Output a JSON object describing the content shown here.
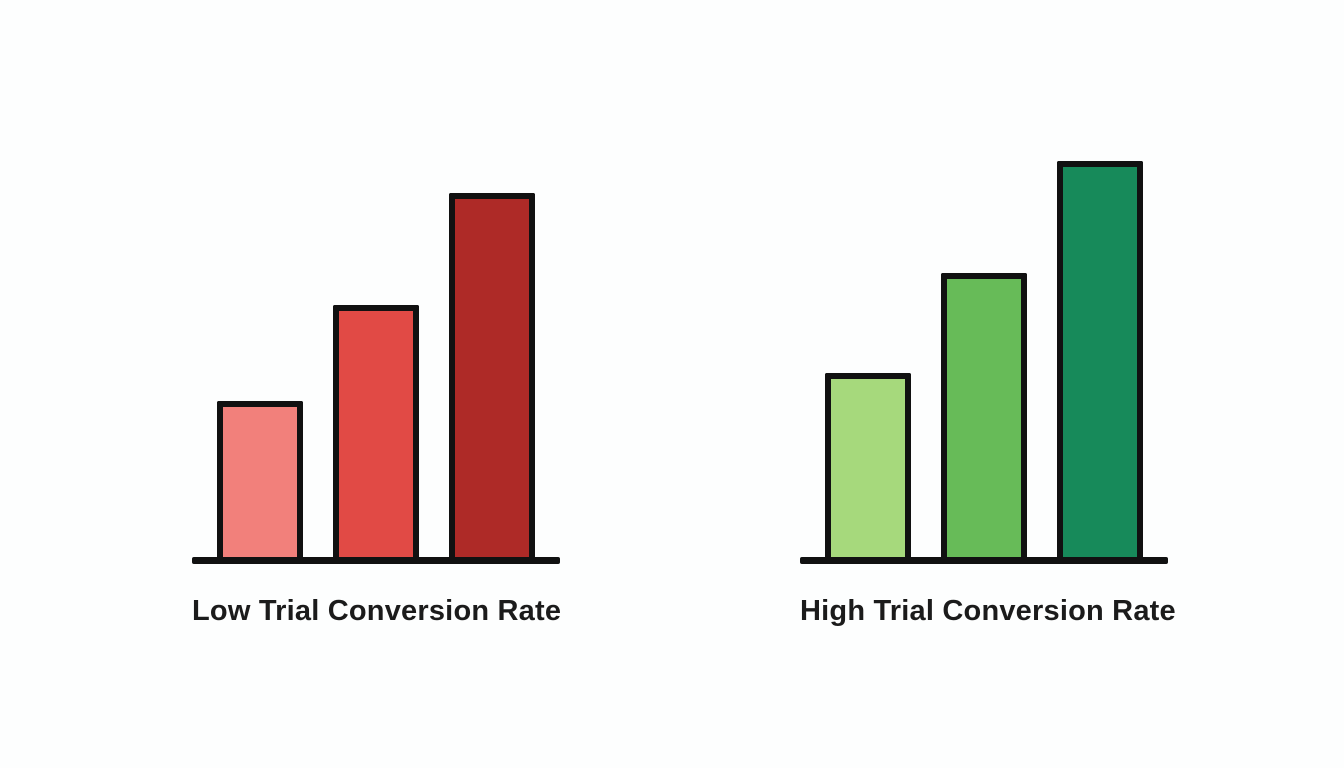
{
  "page": {
    "background_color": "#fdfefe",
    "outline_color": "#111111",
    "text_color": "#1b1b1b"
  },
  "chart_data": [
    {
      "type": "bar",
      "title": "Low Trial Conversion Rate",
      "values": [
        39,
        63,
        91
      ],
      "bar_colors": [
        "#f2807b",
        "#e14a45",
        "#ae2a27"
      ],
      "ylim": [
        0,
        100
      ],
      "xlabel": "",
      "ylabel": "",
      "grid": false,
      "legend": "none"
    },
    {
      "type": "bar",
      "title": "High Trial Conversion Rate",
      "values": [
        46,
        71,
        99
      ],
      "bar_colors": [
        "#a6d97c",
        "#67bb58",
        "#178a5a"
      ],
      "ylim": [
        0,
        100
      ],
      "xlabel": "",
      "ylabel": "",
      "grid": false,
      "legend": "none"
    }
  ]
}
